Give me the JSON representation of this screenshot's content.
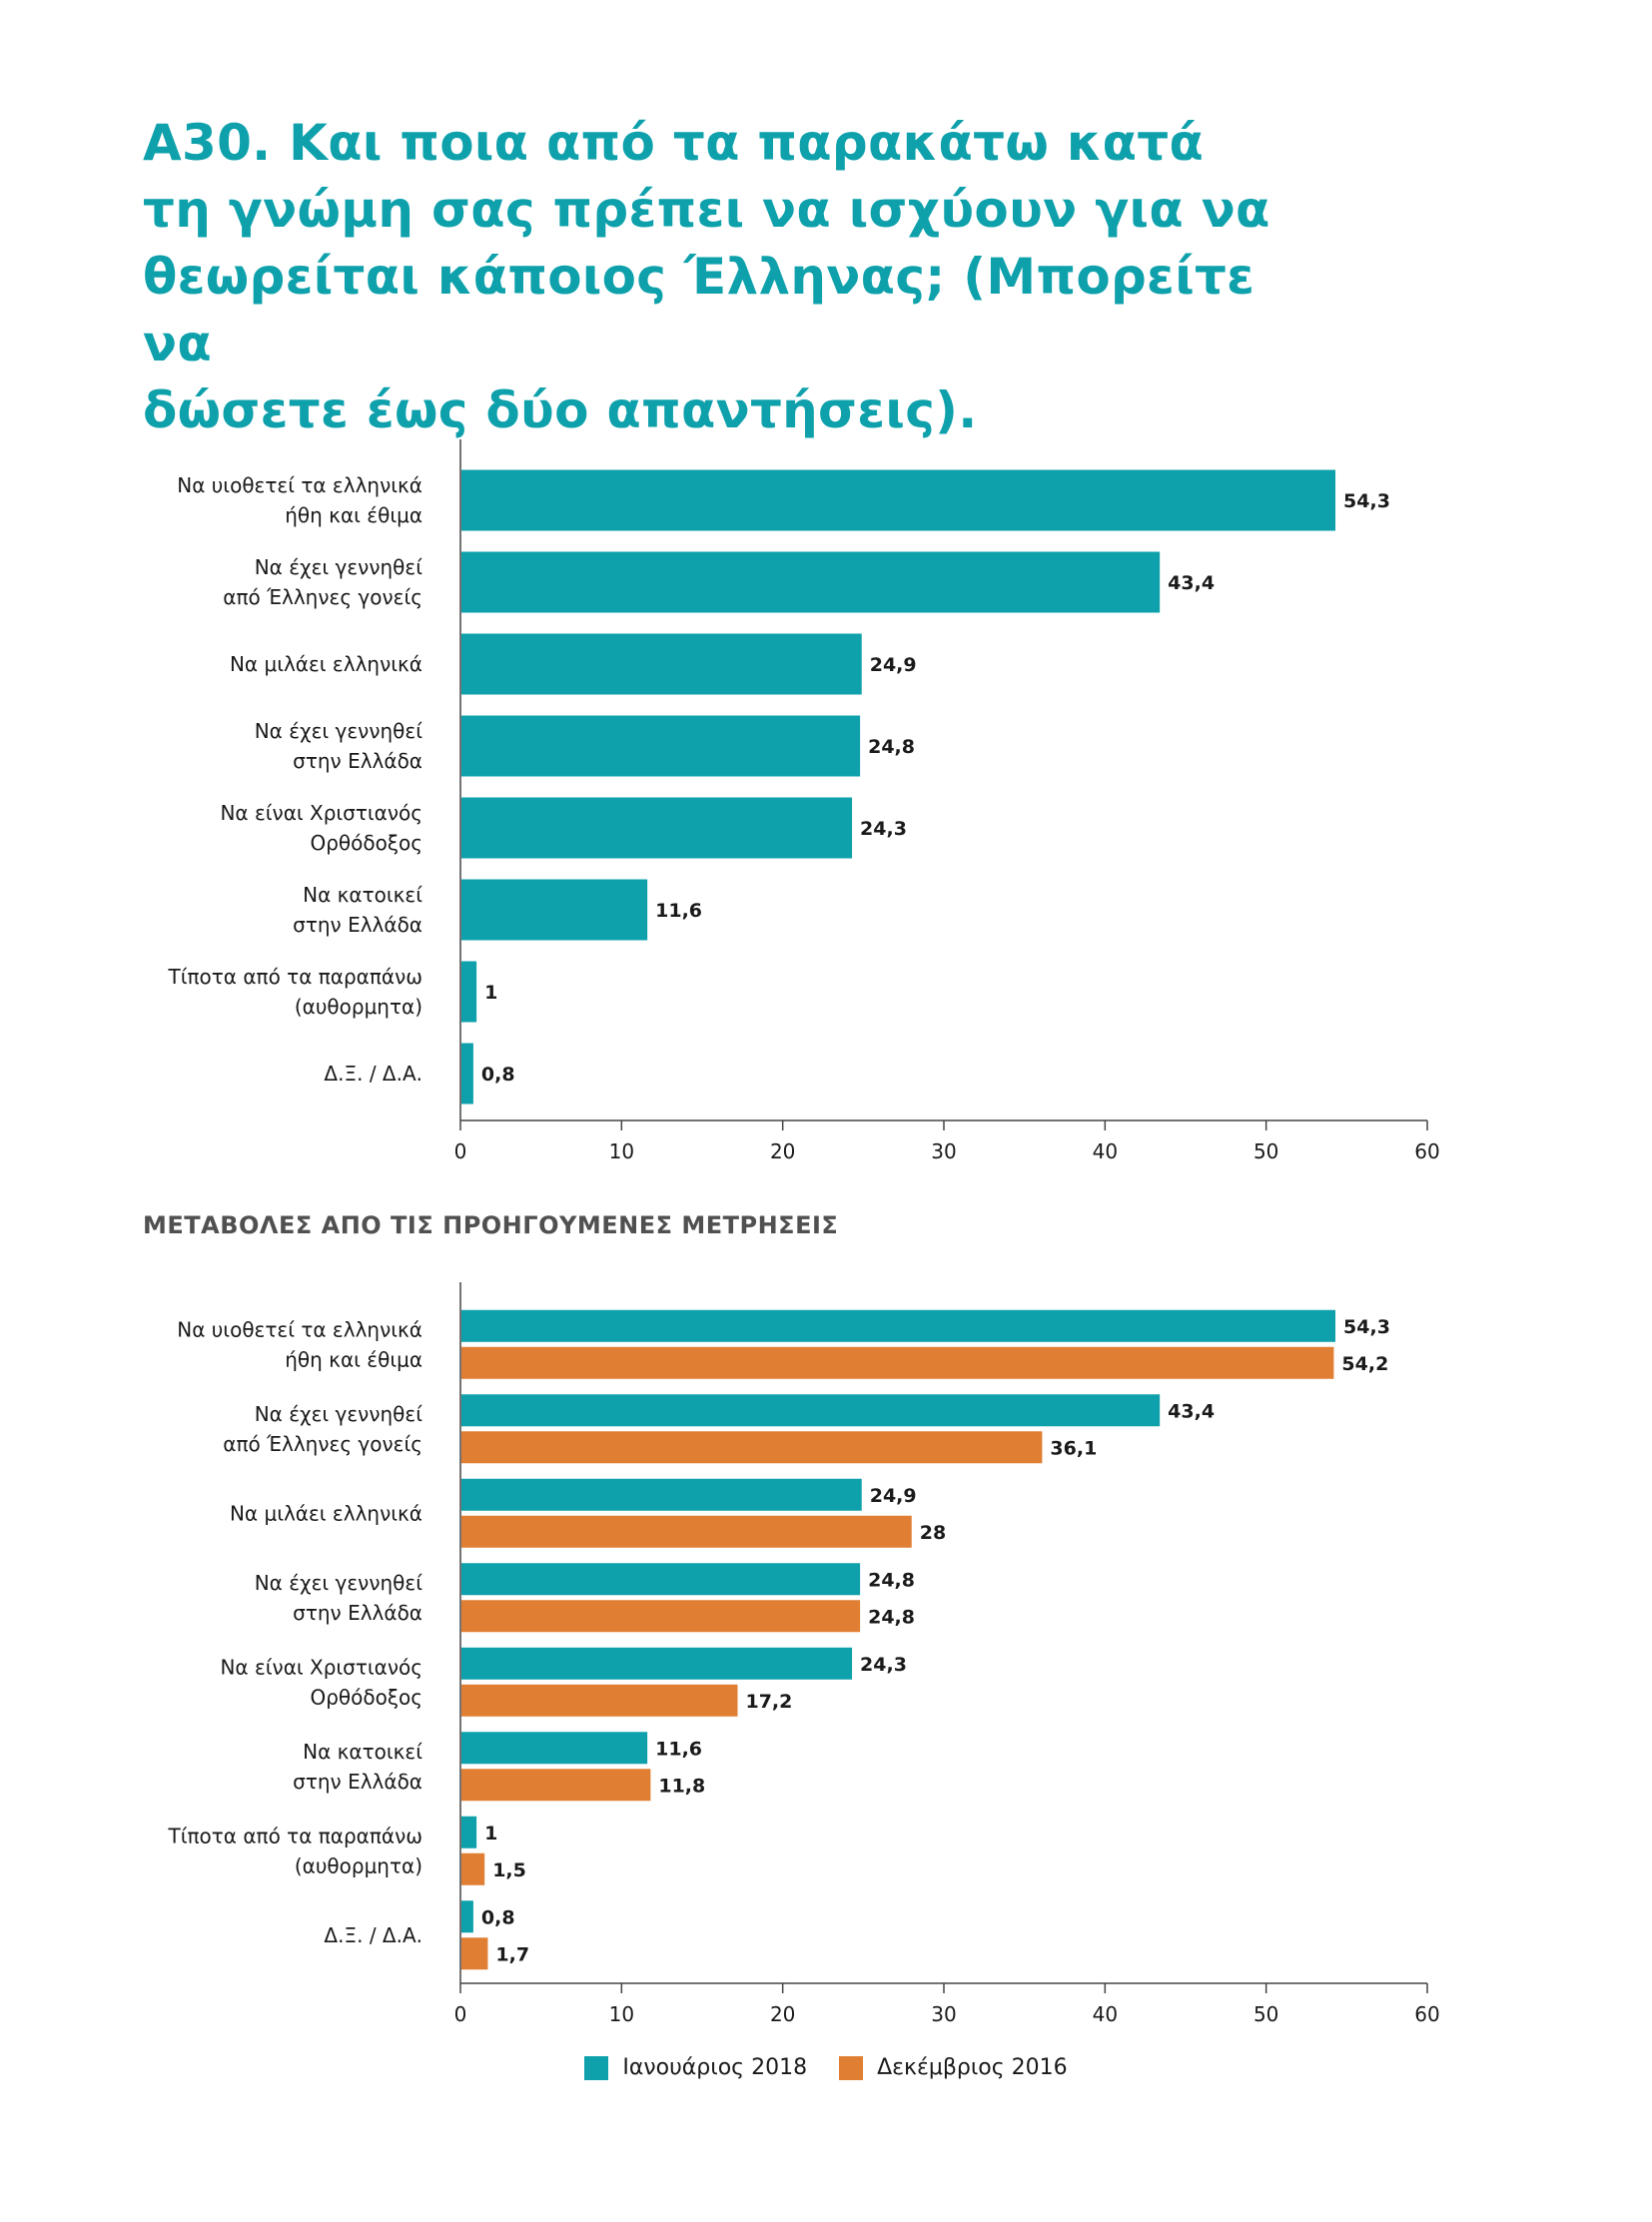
{
  "title": "Α30. Και ποια από τα παρακάτω κατά τη γνώμη σας πρέπει να ισχύουν για να θεωρείται κάποιος Έλληνας; (Μπορείτε να δώσετε έως δύο απαντήσεις).",
  "title_lines": [
    "Α30. Και ποια από τα παρακάτω κατά",
    "τη γνώμη σας πρέπει να ισχύουν για να",
    "θεωρείται κάποιος Έλληνας; (Μπορείτε να",
    "δώσετε έως δύο απαντήσεις)."
  ],
  "subheading": "ΜΕΤΑΒΟΛΕΣ ΑΠΟ ΤΙΣ ΠΡΟΗΓΟΥΜΕΝΕΣ ΜΕΤΡΗΣΕΙΣ",
  "colors": {
    "title": "#0ea1ab",
    "jan2018": "#0ea1ab",
    "dec2016": "#e07f33",
    "axis": "#444444"
  },
  "chart_data": [
    {
      "type": "bar",
      "orientation": "horizontal",
      "categories": [
        [
          "Να υιοθετεί τα ελληνικά",
          "ήθη και έθιμα"
        ],
        [
          "Να έχει γεννηθεί",
          "από Έλληνες γονείς"
        ],
        [
          "Να μιλάει ελληνικά"
        ],
        [
          "Να έχει γεννηθεί",
          "στην Ελλάδα"
        ],
        [
          "Να είναι Χριστιανός",
          "Ορθόδοξος"
        ],
        [
          "Να κατοικεί",
          "στην Ελλάδα"
        ],
        [
          "Τίποτα από τα παραπάνω",
          "(αυθορμητα)"
        ],
        [
          "Δ.Ξ. / Δ.Α."
        ]
      ],
      "series": [
        {
          "values": [
            54.3,
            43.4,
            24.9,
            24.8,
            24.3,
            11.6,
            1,
            0.8
          ],
          "labels": [
            "54,3",
            "43,4",
            "24,9",
            "24,8",
            "24,3",
            "11,6",
            "1",
            "0,8"
          ],
          "color": "#0ea1ab"
        }
      ],
      "xlim": [
        0,
        60
      ],
      "xticks": [
        0,
        10,
        20,
        30,
        40,
        50,
        60
      ],
      "grid": false
    },
    {
      "type": "bar",
      "orientation": "horizontal",
      "title": "ΜΕΤΑΒΟΛΕΣ ΑΠΟ ΤΙΣ ΠΡΟΗΓΟΥΜΕΝΕΣ ΜΕΤΡΗΣΕΙΣ",
      "categories": [
        [
          "Να υιοθετεί τα ελληνικά",
          "ήθη και έθιμα"
        ],
        [
          "Να έχει γεννηθεί",
          "από Έλληνες γονείς"
        ],
        [
          "Να μιλάει ελληνικά"
        ],
        [
          "Να έχει γεννηθεί",
          "στην Ελλάδα"
        ],
        [
          "Να είναι Χριστιανός",
          "Ορθόδοξος"
        ],
        [
          "Να κατοικεί",
          "στην Ελλάδα"
        ],
        [
          "Τίποτα από τα παραπάνω",
          "(αυθορμητα)"
        ],
        [
          "Δ.Ξ. / Δ.Α."
        ]
      ],
      "series": [
        {
          "name": "Ιανουάριος 2018",
          "values": [
            54.3,
            43.4,
            24.9,
            24.8,
            24.3,
            11.6,
            1,
            0.8
          ],
          "labels": [
            "54,3",
            "43,4",
            "24,9",
            "24,8",
            "24,3",
            "11,6",
            "1",
            "0,8"
          ],
          "color": "#0ea1ab"
        },
        {
          "name": "Δεκέμβριος 2016",
          "values": [
            54.2,
            36.1,
            28,
            24.8,
            17.2,
            11.8,
            1.5,
            1.7
          ],
          "labels": [
            "54,2",
            "36,1",
            "28",
            "24,8",
            "17,2",
            "11,8",
            "1,5",
            "1,7"
          ],
          "color": "#e07f33"
        }
      ],
      "xlim": [
        0,
        60
      ],
      "xticks": [
        0,
        10,
        20,
        30,
        40,
        50,
        60
      ],
      "grid": false,
      "legend": "bottom-center"
    }
  ],
  "legend": [
    {
      "label": "Ιανουάριος 2018",
      "color": "#0ea1ab"
    },
    {
      "label": "Δεκέμβριος 2016",
      "color": "#e07f33"
    }
  ]
}
